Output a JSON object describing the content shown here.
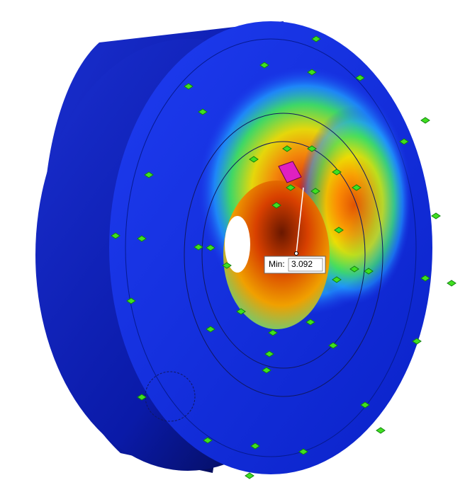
{
  "probe": {
    "label": "Min:",
    "value": 3.092
  }
}
